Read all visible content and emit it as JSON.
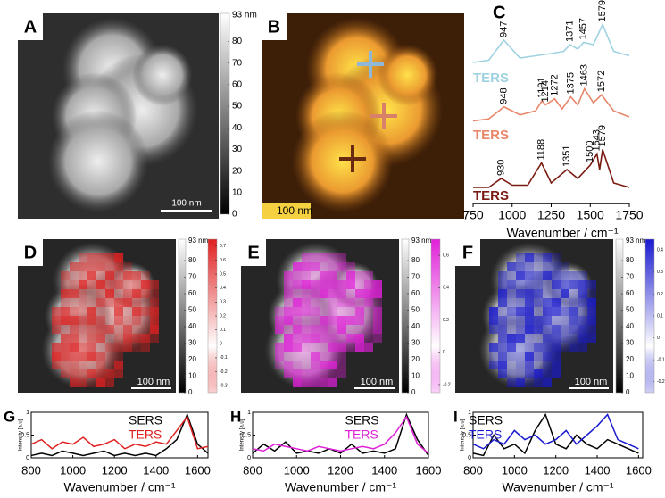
{
  "panel_a": {
    "label": "A",
    "scale_bar": "100 nm",
    "colorbar": {
      "top_label": "93 nm",
      "ylim": [
        0,
        93
      ],
      "yticks": [
        0,
        10,
        20,
        30,
        40,
        50,
        60,
        70,
        80
      ]
    }
  },
  "panel_b": {
    "label": "B",
    "scale_bar": "100 nm"
  },
  "panel_c": {
    "label": "C",
    "xlabel": "Wavenumber / cm⁻¹",
    "xlim": [
      750,
      1750
    ],
    "xticks": [
      750,
      1000,
      1250,
      1500,
      1750
    ],
    "ylim": [
      0,
      1
    ],
    "traces": [
      {
        "name": "TERS",
        "color": "#9fd2e0",
        "x": [
          750,
          850,
          947,
          1050,
          1150,
          1250,
          1330,
          1371,
          1420,
          1457,
          1520,
          1579,
          1650,
          1750
        ],
        "values": [
          0.1,
          0.15,
          0.6,
          0.2,
          0.25,
          0.3,
          0.35,
          0.5,
          0.4,
          0.55,
          0.5,
          0.95,
          0.35,
          0.25
        ],
        "peaks": [
          947,
          1371,
          1457,
          1579
        ]
      },
      {
        "name": "TERS",
        "color": "#e8866a",
        "x": [
          750,
          850,
          948,
          1050,
          1150,
          1191,
          1214,
          1272,
          1320,
          1375,
          1420,
          1463,
          1520,
          1572,
          1650,
          1750
        ],
        "values": [
          0.1,
          0.15,
          0.45,
          0.25,
          0.35,
          0.6,
          0.5,
          0.65,
          0.4,
          0.7,
          0.5,
          0.9,
          0.55,
          0.75,
          0.35,
          0.2
        ],
        "peaks": [
          948,
          1191,
          1214,
          1272,
          1375,
          1463,
          1572
        ]
      },
      {
        "name": "TERS",
        "color": "#7a1a10",
        "x": [
          750,
          850,
          930,
          1000,
          1100,
          1188,
          1250,
          1351,
          1420,
          1500,
          1543,
          1560,
          1579,
          1650,
          1750
        ],
        "values": [
          0.1,
          0.1,
          0.3,
          0.15,
          0.15,
          0.65,
          0.2,
          0.5,
          0.3,
          0.6,
          0.85,
          0.5,
          0.95,
          0.2,
          0.1
        ],
        "peaks": [
          930,
          1188,
          1351,
          1500,
          1543,
          1579
        ]
      }
    ]
  },
  "maps": [
    {
      "label": "D",
      "scale_bar": "100 nm",
      "color": "#e02020",
      "colorbar": {
        "top_label": "93 nm",
        "ylim": [
          0,
          93
        ],
        "yticks": [
          0,
          10,
          20,
          30,
          40,
          50,
          60,
          70,
          80
        ]
      },
      "signal_bar": {
        "ylim": [
          -0.35,
          0.75
        ],
        "yticks": [
          -0.3,
          -0.2,
          -0.1,
          0,
          0.1,
          0.2,
          0.3,
          0.4,
          0.5,
          0.6,
          0.7
        ]
      }
    },
    {
      "label": "E",
      "scale_bar": "100 nm",
      "color": "#e020d8",
      "colorbar": {
        "top_label": "93 nm",
        "ylim": [
          0,
          93
        ],
        "yticks": [
          0,
          10,
          20,
          30,
          40,
          50,
          60,
          70,
          80
        ]
      },
      "signal_bar": {
        "ylim": [
          -0.25,
          0.7
        ],
        "yticks": [
          -0.2,
          0,
          0.2,
          0.4,
          0.6
        ]
      }
    },
    {
      "label": "F",
      "scale_bar": "100 nm",
      "color": "#1a1ad0",
      "colorbar": {
        "top_label": "93 nm",
        "ylim": [
          0,
          93
        ],
        "yticks": [
          0,
          10,
          20,
          30,
          40,
          50,
          60,
          70,
          80
        ]
      },
      "signal_bar": {
        "ylim": [
          -0.25,
          0.45
        ],
        "yticks": [
          -0.2,
          -0.1,
          0,
          0.1,
          0.2,
          0.3,
          0.4
        ]
      }
    }
  ],
  "spectra": [
    {
      "label": "G",
      "ylabel": "Intensity [a.u]",
      "xlabel": "Wavenumber / cm⁻¹",
      "xlim": [
        800,
        1650
      ],
      "xticks": [
        800,
        1000,
        1200,
        1400,
        1600
      ],
      "ylim": [
        0,
        1
      ],
      "yticks": [
        0,
        0.5,
        1
      ],
      "x": [
        800,
        850,
        900,
        950,
        1000,
        1050,
        1100,
        1150,
        1200,
        1250,
        1300,
        1350,
        1400,
        1450,
        1500,
        1550,
        1600,
        1650
      ],
      "series": [
        {
          "name": "SERS",
          "color": "#000000",
          "values": [
            0.05,
            0.1,
            0.05,
            0.15,
            0.1,
            0.05,
            0.1,
            0.15,
            0.05,
            0.1,
            0.05,
            0.1,
            0.05,
            0.2,
            0.4,
            0.95,
            0.3,
            0.1
          ]
        },
        {
          "name": "TERS",
          "color": "#e02020",
          "values": [
            0.3,
            0.4,
            0.2,
            0.35,
            0.3,
            0.45,
            0.25,
            0.3,
            0.4,
            0.2,
            0.3,
            0.25,
            0.35,
            0.3,
            0.6,
            0.9,
            0.2,
            0.25
          ]
        }
      ]
    },
    {
      "label": "H",
      "ylabel": "Intensity [a.u]",
      "xlabel": "Wavenumber / cm⁻¹",
      "xlim": [
        800,
        1600
      ],
      "xticks": [
        800,
        1000,
        1200,
        1400,
        1600
      ],
      "ylim": [
        0,
        1
      ],
      "yticks": [
        0,
        0.5,
        1
      ],
      "x": [
        800,
        850,
        900,
        950,
        1000,
        1050,
        1100,
        1150,
        1200,
        1250,
        1300,
        1350,
        1400,
        1450,
        1500,
        1550,
        1600
      ],
      "series": [
        {
          "name": "SERS",
          "color": "#000000",
          "values": [
            0.1,
            0.3,
            0.15,
            0.35,
            0.1,
            0.15,
            0.1,
            0.2,
            0.1,
            0.3,
            0.1,
            0.15,
            0.1,
            0.2,
            0.95,
            0.4,
            0.05
          ]
        },
        {
          "name": "TERS",
          "color": "#e020d8",
          "values": [
            0.2,
            0.15,
            0.3,
            0.25,
            0.2,
            0.15,
            0.25,
            0.2,
            0.15,
            0.2,
            0.25,
            0.2,
            0.3,
            0.55,
            0.9,
            0.3,
            0.1
          ]
        }
      ]
    },
    {
      "label": "I",
      "ylabel": "Intensity [a.u]",
      "xlabel": "Wavenumber / cm⁻¹",
      "xlim": [
        800,
        1620
      ],
      "xticks": [
        800,
        1000,
        1200,
        1400,
        1600
      ],
      "ylim": [
        0,
        1
      ],
      "yticks": [
        0,
        0.5,
        1
      ],
      "x": [
        800,
        850,
        900,
        950,
        1000,
        1050,
        1100,
        1150,
        1200,
        1250,
        1300,
        1350,
        1400,
        1450,
        1500,
        1550,
        1600
      ],
      "series": [
        {
          "name": "SERS",
          "color": "#000000",
          "values": [
            0.1,
            0.05,
            0.5,
            0.2,
            0.3,
            0.1,
            0.6,
            0.95,
            0.3,
            0.2,
            0.5,
            0.3,
            0.2,
            0.4,
            0.3,
            0.2,
            0.1
          ]
        },
        {
          "name": "TERS",
          "color": "#1a1ad0",
          "values": [
            0.3,
            0.2,
            0.4,
            0.3,
            0.6,
            0.4,
            0.5,
            0.3,
            0.4,
            0.6,
            0.3,
            0.5,
            0.7,
            0.95,
            0.4,
            0.3,
            0.2
          ]
        }
      ]
    }
  ]
}
